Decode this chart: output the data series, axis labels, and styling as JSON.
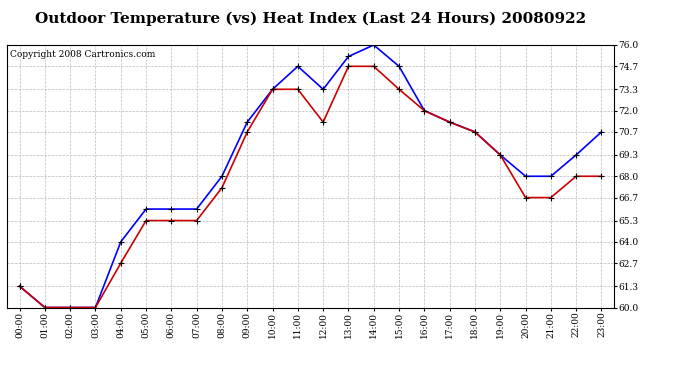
{
  "title": "Outdoor Temperature (vs) Heat Index (Last 24 Hours) 20080922",
  "copyright": "Copyright 2008 Cartronics.com",
  "hours": [
    "00:00",
    "01:00",
    "02:00",
    "03:00",
    "04:00",
    "05:00",
    "06:00",
    "07:00",
    "08:00",
    "09:00",
    "10:00",
    "11:00",
    "12:00",
    "13:00",
    "14:00",
    "15:00",
    "16:00",
    "17:00",
    "18:00",
    "19:00",
    "20:00",
    "21:00",
    "22:00",
    "23:00"
  ],
  "temp_blue": [
    61.3,
    60.0,
    60.0,
    60.0,
    64.0,
    66.0,
    66.0,
    66.0,
    68.0,
    71.3,
    73.3,
    74.7,
    73.3,
    75.3,
    76.0,
    74.7,
    72.0,
    71.3,
    70.7,
    69.3,
    68.0,
    68.0,
    69.3,
    70.7
  ],
  "heat_red": [
    61.3,
    60.0,
    60.0,
    60.0,
    62.7,
    65.3,
    65.3,
    65.3,
    67.3,
    70.7,
    73.3,
    73.3,
    71.3,
    74.7,
    74.7,
    73.3,
    72.0,
    71.3,
    70.7,
    69.3,
    66.7,
    66.7,
    68.0,
    68.0
  ],
  "ylim_min": 60.0,
  "ylim_max": 76.0,
  "yticks": [
    60.0,
    61.3,
    62.7,
    64.0,
    65.3,
    66.7,
    68.0,
    69.3,
    70.7,
    72.0,
    73.3,
    74.7,
    76.0
  ],
  "blue_color": "#0000ff",
  "red_color": "#cc0000",
  "bg_color": "#ffffff",
  "plot_bg_color": "#ffffff",
  "grid_color": "#bbbbbb",
  "title_fontsize": 11,
  "copyright_fontsize": 6.5
}
